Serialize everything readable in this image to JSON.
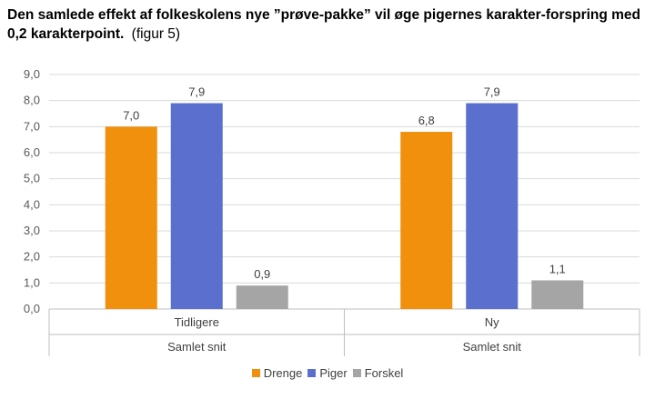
{
  "title": {
    "main": "Den samlede effekt af folkeskolens nye ”prøve-pakke” vil øge pigernes karakter-forspring med 0,2 karakterpoint.",
    "note": "(figur 5)"
  },
  "chart_data": {
    "type": "bar",
    "groups": [
      {
        "category": "Tidligere",
        "group_label": "Samlet snit"
      },
      {
        "category": "Ny",
        "group_label": "Samlet snit"
      }
    ],
    "series": [
      {
        "name": "Drenge",
        "color": "#F0900C",
        "values": [
          7.0,
          6.8
        ],
        "labels": [
          "7,0",
          "6,8"
        ]
      },
      {
        "name": "Piger",
        "color": "#5B6FCF",
        "values": [
          7.9,
          7.9
        ],
        "labels": [
          "7,9",
          "7,9"
        ]
      },
      {
        "name": "Forskel",
        "color": "#A5A5A5",
        "values": [
          0.9,
          1.1
        ],
        "labels": [
          "0,9",
          "1,1"
        ]
      }
    ],
    "yticks": [
      "0,0",
      "1,0",
      "2,0",
      "3,0",
      "4,0",
      "5,0",
      "6,0",
      "7,0",
      "8,0",
      "9,0"
    ],
    "ylim": [
      0,
      9
    ],
    "grid": true,
    "legend_position": "bottom"
  }
}
